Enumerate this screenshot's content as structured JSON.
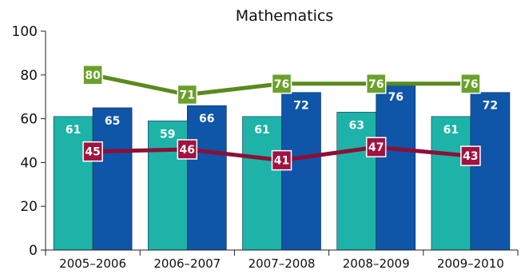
{
  "chart_data": {
    "type": "bar",
    "title": "Mathematics",
    "xlabel": "",
    "ylabel": "",
    "ylim": [
      0,
      100
    ],
    "yticks": [
      0,
      20,
      40,
      60,
      80,
      100
    ],
    "grid": false,
    "categories": [
      "2005–2006",
      "2006–2007",
      "2007–2008",
      "2008–2009",
      "2009–2010"
    ],
    "bar_series": [
      {
        "values": [
          61,
          59,
          61,
          63,
          61
        ],
        "color": "#1db3a8",
        "label_color": "#ffffff"
      },
      {
        "values": [
          65,
          66,
          72,
          76,
          72
        ],
        "color": "#0f55a8",
        "label_color": "#ffffff"
      }
    ],
    "line_series": [
      {
        "values": [
          80,
          71,
          76,
          76,
          76
        ],
        "color": "#5a8a1c",
        "marker_color": "#6aa12a"
      },
      {
        "values": [
          45,
          46,
          41,
          47,
          43
        ],
        "color": "#8c0f37",
        "marker_color": "#a3123f"
      }
    ]
  }
}
